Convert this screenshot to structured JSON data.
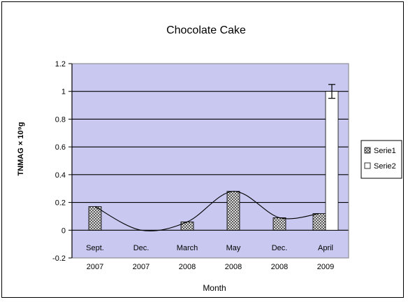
{
  "chart_data": {
    "type": "bar",
    "title": "Chocolate Cake",
    "xlabel": "Month",
    "ylabel": "TNMAG × 10⁹g",
    "ylim": [
      -0.2,
      1.2
    ],
    "yticks": [
      -0.2,
      0,
      0.2,
      0.4,
      0.6,
      0.8,
      1,
      1.2
    ],
    "ytick_labels": [
      "-0.2",
      "0",
      "0.2",
      "0.4",
      "0.6",
      "0.8",
      "1",
      "1.2"
    ],
    "categories": [
      [
        "Sept.",
        "2007"
      ],
      [
        "Dec.",
        "2007"
      ],
      [
        "March",
        "2008"
      ],
      [
        "May",
        "2008"
      ],
      [
        "Dec.",
        "2008"
      ],
      [
        "April",
        "2009"
      ]
    ],
    "series": [
      {
        "name": "Serie1",
        "pattern": "crosshatch",
        "values": [
          0.17,
          0,
          0.06,
          0.28,
          0.09,
          0.12
        ]
      },
      {
        "name": "Serie2",
        "pattern": "solid-white",
        "values": [
          null,
          null,
          null,
          null,
          null,
          1.0
        ],
        "error": [
          null,
          null,
          null,
          null,
          null,
          0.05
        ]
      }
    ],
    "trendline": {
      "type": "smooth",
      "follows": "Serie1"
    },
    "grid": true,
    "plot_background": "#c8c8f0",
    "legend_position": "right"
  }
}
